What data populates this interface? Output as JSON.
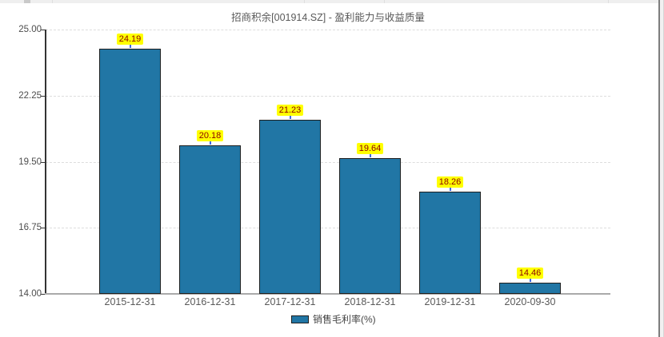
{
  "title": "招商积余[001914.SZ] - 盈利能力与收益质量",
  "legend": {
    "label": "销售毛利率(%)"
  },
  "colors": {
    "bar_fill": "#2176a5",
    "bar_border": "#1f1f1f",
    "label_bg": "#ffff00",
    "label_text": "#8b0000",
    "connector": "#4169e1",
    "axis_line": "#333333",
    "x_axis_line": "#aaaaaa",
    "grid": "#dddddd"
  },
  "chart_data": {
    "type": "bar",
    "title": "招商积余[001914.SZ] - 盈利能力与收益质量",
    "categories": [
      "2015-12-31",
      "2016-12-31",
      "2017-12-31",
      "2018-12-31",
      "2019-12-31",
      "2020-09-30"
    ],
    "series": [
      {
        "name": "销售毛利率(%)",
        "values": [
          24.19,
          20.18,
          21.23,
          19.64,
          18.26,
          14.46
        ]
      }
    ],
    "value_labels": [
      "24.19",
      "20.18",
      "21.23",
      "19.64",
      "18.26",
      "14.46"
    ],
    "xlabel": "",
    "ylabel": "",
    "ylim": [
      14.0,
      25.0
    ],
    "yticks": [
      14.0,
      16.75,
      19.5,
      22.25,
      25.0
    ],
    "ytick_labels": [
      "14.00",
      "16.75",
      "19.50",
      "22.25",
      "25.00"
    ],
    "grid": "horizontal-dashed",
    "legend_position": "bottom-center",
    "bar_value_label_position": "above-bar-with-connector"
  }
}
